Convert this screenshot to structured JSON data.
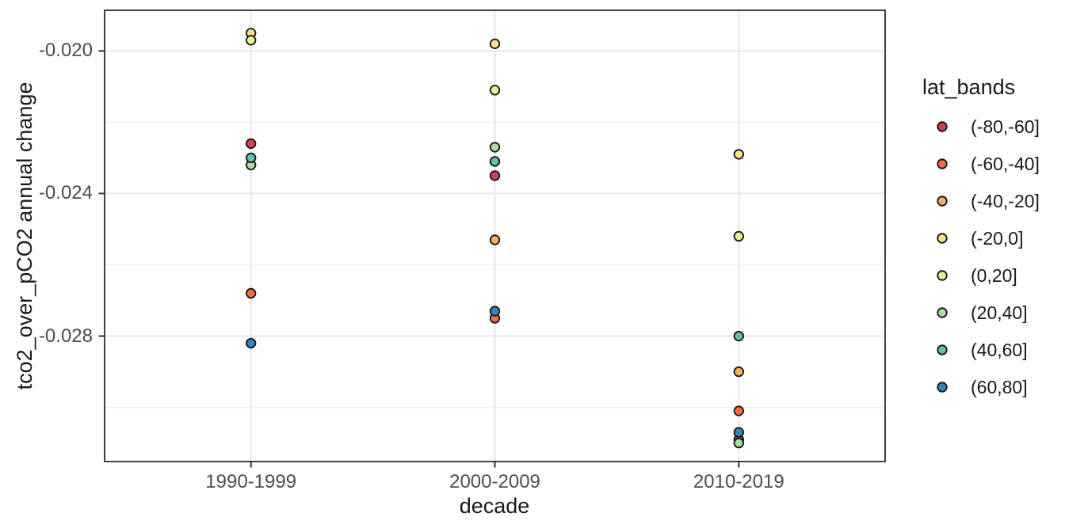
{
  "chart_data": {
    "type": "scatter",
    "title": "",
    "xlabel": "decade",
    "ylabel": "tco2_over_pCO2 annual change",
    "categories": [
      "1990-1999",
      "2000-2009",
      "2010-2019"
    ],
    "ylim": [
      -0.03152,
      -0.01886
    ],
    "y_major_ticks": [
      -0.02,
      -0.024,
      -0.028
    ],
    "y_tick_labels": [
      "-0.020",
      "-0.024",
      "-0.028"
    ],
    "y_minor_gridlines": [
      -0.022,
      -0.026,
      -0.03
    ],
    "grid": "on",
    "legend_position": "right",
    "legend_title": "lat_bands",
    "point_outline_color": "#1A1A1A",
    "series": [
      {
        "name": "(-80,-60]",
        "color": "#D53E4F",
        "values": [
          -0.0226,
          -0.0235,
          -0.0309
        ]
      },
      {
        "name": "(-60,-40]",
        "color": "#F46D43",
        "values": [
          -0.0268,
          -0.0275,
          -0.0301
        ]
      },
      {
        "name": "(-40,-20]",
        "color": "#FDAE61",
        "values": [
          null,
          -0.0253,
          -0.029
        ]
      },
      {
        "name": "(-20,0]",
        "color": "#FEE08B",
        "values": [
          -0.0195,
          -0.0198,
          -0.0229
        ]
      },
      {
        "name": "(0,20]",
        "color": "#E6F598",
        "values": [
          -0.0197,
          -0.0211,
          -0.0252
        ]
      },
      {
        "name": "(20,40]",
        "color": "#ABDDA4",
        "values": [
          -0.0232,
          -0.0227,
          -0.031
        ]
      },
      {
        "name": "(40,60]",
        "color": "#66C2A5",
        "values": [
          -0.023,
          -0.0231,
          -0.028
        ]
      },
      {
        "name": "(60,80]",
        "color": "#3288BD",
        "values": [
          -0.0282,
          -0.0273,
          -0.0307
        ]
      }
    ]
  }
}
